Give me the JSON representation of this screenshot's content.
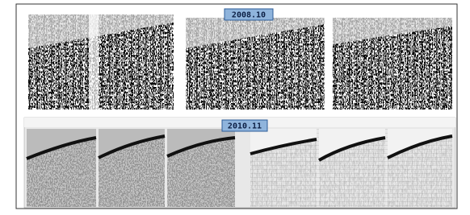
{
  "labels": {
    "top": "2008.10",
    "bottom": "2010.11"
  }
}
